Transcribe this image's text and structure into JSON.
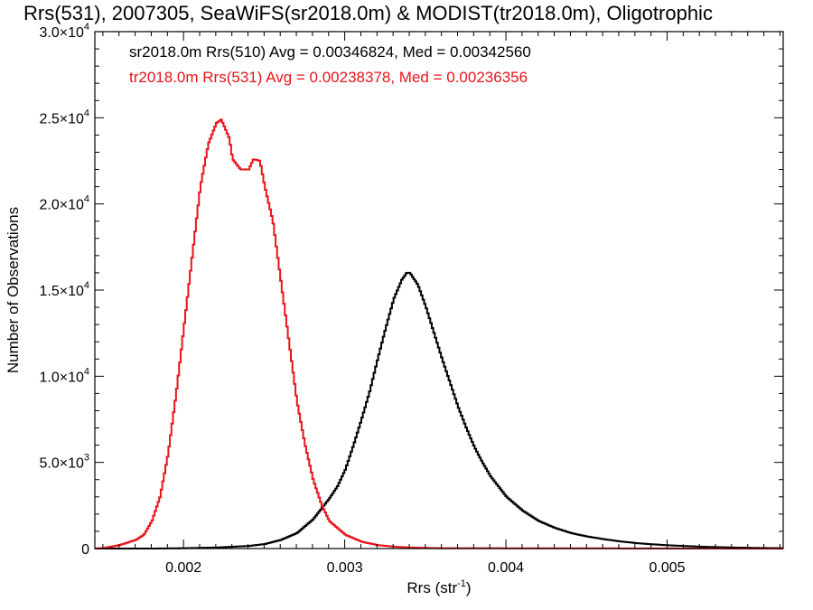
{
  "chart_data": {
    "type": "line",
    "title": "Rrs(531), 2007305, SeaWiFS(sr2018.0m) & MODIST(tr2018.0m), Oligotrophic",
    "xlabel": "Rrs (str",
    "xlabel_sup": "-1",
    "xlabel_close": ")",
    "ylabel": "Number of Observations",
    "xlim": [
      0.00145,
      0.00572
    ],
    "ylim": [
      0,
      30000
    ],
    "x_ticks": [
      {
        "value": 0.002,
        "label": "0.002"
      },
      {
        "value": 0.003,
        "label": "0.003"
      },
      {
        "value": 0.004,
        "label": "0.004"
      },
      {
        "value": 0.005,
        "label": "0.005"
      }
    ],
    "y_ticks": [
      {
        "value": 0,
        "mant": "0",
        "exp": ""
      },
      {
        "value": 5000,
        "mant": "5.0×10",
        "exp": "3"
      },
      {
        "value": 10000,
        "mant": "1.0×10",
        "exp": "4"
      },
      {
        "value": 15000,
        "mant": "1.5×10",
        "exp": "4"
      },
      {
        "value": 20000,
        "mant": "2.0×10",
        "exp": "4"
      },
      {
        "value": 25000,
        "mant": "2.5×10",
        "exp": "4"
      },
      {
        "value": 30000,
        "mant": "3.0×10",
        "exp": "4"
      }
    ],
    "grid": false,
    "legend": [
      {
        "text": "sr2018.0m Rrs(510) Avg = 0.00346824, Med = 0.00342560",
        "color": "#000000"
      },
      {
        "text": "tr2018.0m Rrs(531) Avg = 0.00238378, Med = 0.00236356",
        "color": "#e8141a"
      }
    ],
    "legend_position": "top-left",
    "series": [
      {
        "color": "#000000",
        "points": [
          [
            0.00145,
            0
          ],
          [
            0.0018,
            0
          ],
          [
            0.002,
            20
          ],
          [
            0.0022,
            60
          ],
          [
            0.0024,
            150
          ],
          [
            0.0025,
            260
          ],
          [
            0.0026,
            500
          ],
          [
            0.0027,
            900
          ],
          [
            0.0028,
            1700
          ],
          [
            0.0029,
            2900
          ],
          [
            0.00295,
            3600
          ],
          [
            0.003,
            4600
          ],
          [
            0.00305,
            6000
          ],
          [
            0.0031,
            7500
          ],
          [
            0.00315,
            9100
          ],
          [
            0.0032,
            11000
          ],
          [
            0.00325,
            12800
          ],
          [
            0.0033,
            14500
          ],
          [
            0.00335,
            15600
          ],
          [
            0.00338,
            16000
          ],
          [
            0.0034,
            16000
          ],
          [
            0.00345,
            15300
          ],
          [
            0.0035,
            14000
          ],
          [
            0.00355,
            12500
          ],
          [
            0.0036,
            11000
          ],
          [
            0.00365,
            9600
          ],
          [
            0.0037,
            8200
          ],
          [
            0.00375,
            7000
          ],
          [
            0.0038,
            5900
          ],
          [
            0.00385,
            5000
          ],
          [
            0.0039,
            4200
          ],
          [
            0.004,
            3000
          ],
          [
            0.0041,
            2200
          ],
          [
            0.0042,
            1600
          ],
          [
            0.0043,
            1200
          ],
          [
            0.0044,
            900
          ],
          [
            0.0045,
            700
          ],
          [
            0.0046,
            550
          ],
          [
            0.0047,
            420
          ],
          [
            0.0048,
            320
          ],
          [
            0.0049,
            250
          ],
          [
            0.005,
            190
          ],
          [
            0.0052,
            110
          ],
          [
            0.0054,
            60
          ],
          [
            0.0056,
            30
          ],
          [
            0.00572,
            20
          ]
        ]
      },
      {
        "color": "#e8141a",
        "points": [
          [
            0.00145,
            0
          ],
          [
            0.0015,
            30
          ],
          [
            0.0016,
            200
          ],
          [
            0.0017,
            500
          ],
          [
            0.00175,
            800
          ],
          [
            0.0018,
            1600
          ],
          [
            0.00185,
            3000
          ],
          [
            0.0019,
            5500
          ],
          [
            0.00195,
            9000
          ],
          [
            0.002,
            13000
          ],
          [
            0.00205,
            17000
          ],
          [
            0.0021,
            21000
          ],
          [
            0.00215,
            23500
          ],
          [
            0.0022,
            24700
          ],
          [
            0.00223,
            24900
          ],
          [
            0.00228,
            23800
          ],
          [
            0.0023,
            22600
          ],
          [
            0.00235,
            22000
          ],
          [
            0.0024,
            22000
          ],
          [
            0.00243,
            22600
          ],
          [
            0.00247,
            22500
          ],
          [
            0.0025,
            21000
          ],
          [
            0.00255,
            19000
          ],
          [
            0.0026,
            15500
          ],
          [
            0.00265,
            12000
          ],
          [
            0.0027,
            8500
          ],
          [
            0.00275,
            6000
          ],
          [
            0.0028,
            4000
          ],
          [
            0.00285,
            2600
          ],
          [
            0.0029,
            1600
          ],
          [
            0.003,
            800
          ],
          [
            0.0031,
            400
          ],
          [
            0.0032,
            200
          ],
          [
            0.0033,
            110
          ],
          [
            0.0034,
            60
          ],
          [
            0.0036,
            20
          ],
          [
            0.00572,
            0
          ]
        ]
      }
    ]
  }
}
